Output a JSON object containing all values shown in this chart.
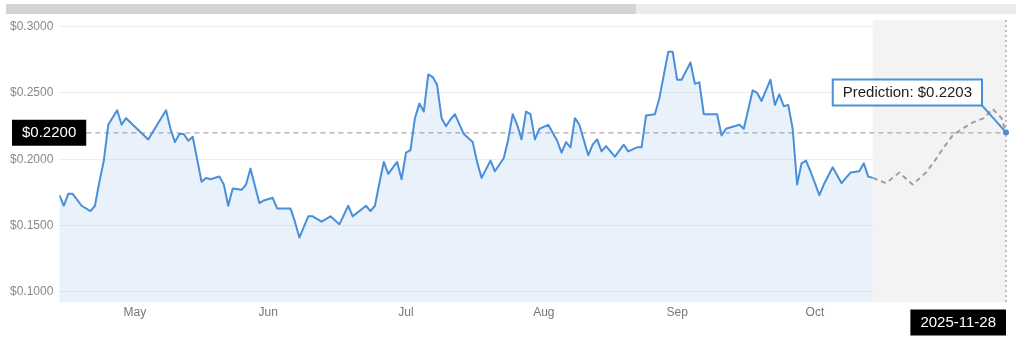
{
  "chart_data": {
    "type": "area",
    "xlim": [
      "2025-04-29",
      "2025-11-28"
    ],
    "xticks": [
      {
        "value": "2025-05-16",
        "label": "May"
      },
      {
        "value": "2025-06-15",
        "label": "Jun"
      },
      {
        "value": "2025-07-16",
        "label": "Jul"
      },
      {
        "value": "2025-08-16",
        "label": "Aug"
      },
      {
        "value": "2025-09-15",
        "label": "Sep"
      },
      {
        "value": "2025-10-16",
        "label": "Oct"
      }
    ],
    "ylim": [
      0.092,
      0.305
    ],
    "yticks": [
      {
        "value": 0.1,
        "label": "$0.1000"
      },
      {
        "value": 0.15,
        "label": "$0.1500"
      },
      {
        "value": 0.2,
        "label": "$0.2000"
      },
      {
        "value": 0.25,
        "label": "$0.2500"
      },
      {
        "value": 0.3,
        "label": "$0.3000"
      }
    ],
    "grid": "y",
    "legend": false,
    "series": [
      {
        "type": "area",
        "color": "#4a8fd9",
        "x": [
          "2025-04-29",
          "2025-04-30",
          "2025-05-01",
          "2025-05-02",
          "2025-05-04",
          "2025-05-06",
          "2025-05-07",
          "2025-05-08",
          "2025-05-09",
          "2025-05-10",
          "2025-05-12",
          "2025-05-13",
          "2025-05-14",
          "2025-05-19",
          "2025-05-21",
          "2025-05-23",
          "2025-05-24",
          "2025-05-25",
          "2025-05-26",
          "2025-05-27",
          "2025-05-28",
          "2025-05-29",
          "2025-05-31",
          "2025-06-01",
          "2025-06-02",
          "2025-06-04",
          "2025-06-05",
          "2025-06-06",
          "2025-06-07",
          "2025-06-09",
          "2025-06-10",
          "2025-06-11",
          "2025-06-13",
          "2025-06-14",
          "2025-06-16",
          "2025-06-17",
          "2025-06-20",
          "2025-06-21",
          "2025-06-22",
          "2025-06-24",
          "2025-06-25",
          "2025-06-27",
          "2025-06-29",
          "2025-07-01",
          "2025-07-03",
          "2025-07-04",
          "2025-07-07",
          "2025-07-08",
          "2025-07-09",
          "2025-07-10",
          "2025-07-11",
          "2025-07-12",
          "2025-07-14",
          "2025-07-15",
          "2025-07-16",
          "2025-07-17",
          "2025-07-18",
          "2025-07-19",
          "2025-07-20",
          "2025-07-21",
          "2025-07-22",
          "2025-07-23",
          "2025-07-24",
          "2025-07-25",
          "2025-07-26",
          "2025-07-27",
          "2025-07-29",
          "2025-07-31",
          "2025-08-01",
          "2025-08-02",
          "2025-08-04",
          "2025-08-05",
          "2025-08-07",
          "2025-08-08",
          "2025-08-09",
          "2025-08-10",
          "2025-08-11",
          "2025-08-12",
          "2025-08-13",
          "2025-08-14",
          "2025-08-15",
          "2025-08-17",
          "2025-08-19",
          "2025-08-20",
          "2025-08-21",
          "2025-08-22",
          "2025-08-23",
          "2025-08-24",
          "2025-08-26",
          "2025-08-27",
          "2025-08-28",
          "2025-08-29",
          "2025-08-30",
          "2025-09-01",
          "2025-09-03",
          "2025-09-04",
          "2025-09-06",
          "2025-09-07",
          "2025-09-08",
          "2025-09-10",
          "2025-09-11",
          "2025-09-13",
          "2025-09-14",
          "2025-09-15",
          "2025-09-16",
          "2025-09-18",
          "2025-09-19",
          "2025-09-20",
          "2025-09-21",
          "2025-09-24",
          "2025-09-25",
          "2025-09-26",
          "2025-09-29",
          "2025-09-30",
          "2025-10-02",
          "2025-10-03",
          "2025-10-04",
          "2025-10-06",
          "2025-10-07",
          "2025-10-08",
          "2025-10-09",
          "2025-10-10",
          "2025-10-11",
          "2025-10-12",
          "2025-10-13",
          "2025-10-14",
          "2025-10-15",
          "2025-10-17",
          "2025-10-18",
          "2025-10-20",
          "2025-10-22",
          "2025-10-24",
          "2025-10-26",
          "2025-10-27",
          "2025-10-28",
          "2025-10-29"
        ],
        "values": [
          0.173,
          0.165,
          0.174,
          0.174,
          0.165,
          0.161,
          0.165,
          0.183,
          0.199,
          0.226,
          0.237,
          0.226,
          0.231,
          0.215,
          0.226,
          0.237,
          0.223,
          0.213,
          0.219,
          0.219,
          0.214,
          0.217,
          0.183,
          0.186,
          0.185,
          0.187,
          0.181,
          0.165,
          0.178,
          0.177,
          0.181,
          0.193,
          0.167,
          0.169,
          0.171,
          0.163,
          0.163,
          0.153,
          0.141,
          0.157,
          0.157,
          0.153,
          0.157,
          0.151,
          0.165,
          0.157,
          0.165,
          0.161,
          0.165,
          0.182,
          0.198,
          0.189,
          0.198,
          0.185,
          0.205,
          0.207,
          0.231,
          0.242,
          0.236,
          0.264,
          0.262,
          0.256,
          0.231,
          0.225,
          0.23,
          0.234,
          0.219,
          0.213,
          0.198,
          0.186,
          0.199,
          0.191,
          0.201,
          0.215,
          0.234,
          0.226,
          0.215,
          0.236,
          0.234,
          0.215,
          0.223,
          0.226,
          0.214,
          0.205,
          0.213,
          0.209,
          0.231,
          0.226,
          0.203,
          0.211,
          0.215,
          0.206,
          0.21,
          0.202,
          0.211,
          0.206,
          0.209,
          0.209,
          0.233,
          0.234,
          0.246,
          0.281,
          0.281,
          0.26,
          0.26,
          0.273,
          0.257,
          0.258,
          0.234,
          0.234,
          0.218,
          0.223,
          0.226,
          0.223,
          0.252,
          0.25,
          0.244,
          0.26,
          0.241,
          0.249,
          0.24,
          0.241,
          0.223,
          0.181,
          0.197,
          0.199,
          0.191,
          0.173,
          0.181,
          0.194,
          0.182,
          0.19,
          0.191,
          0.197,
          0.187,
          0.186
        ]
      },
      {
        "type": "line",
        "line_style": "dashed",
        "color": "#9e9e9e",
        "x": [
          "2025-10-29",
          "2025-11-01",
          "2025-11-04",
          "2025-11-07",
          "2025-11-10",
          "2025-11-12",
          "2025-11-14",
          "2025-11-16",
          "2025-11-20",
          "2025-11-23",
          "2025-11-25",
          "2025-11-27",
          "2025-11-28"
        ],
        "values": [
          0.186,
          0.182,
          0.19,
          0.181,
          0.19,
          0.199,
          0.209,
          0.218,
          0.227,
          0.231,
          0.238,
          0.231,
          0.2203
        ]
      }
    ],
    "bands": [
      {
        "axis": "x",
        "from": "2025-10-29",
        "to": "2025-11-28",
        "color": "#f3f3f3"
      }
    ],
    "ref_lines": [
      {
        "axis": "y",
        "value": 0.22,
        "label": "$0.2200",
        "line_style": "dashed",
        "color": "#aaaaaa"
      },
      {
        "axis": "x",
        "value": "2025-11-28",
        "label": "2025-11-28",
        "line_style": "dotted",
        "color": "#999999"
      }
    ],
    "annotations": [
      {
        "text": "Prediction: $0.2203",
        "x": "2025-11-28",
        "y": 0.2203
      }
    ]
  }
}
